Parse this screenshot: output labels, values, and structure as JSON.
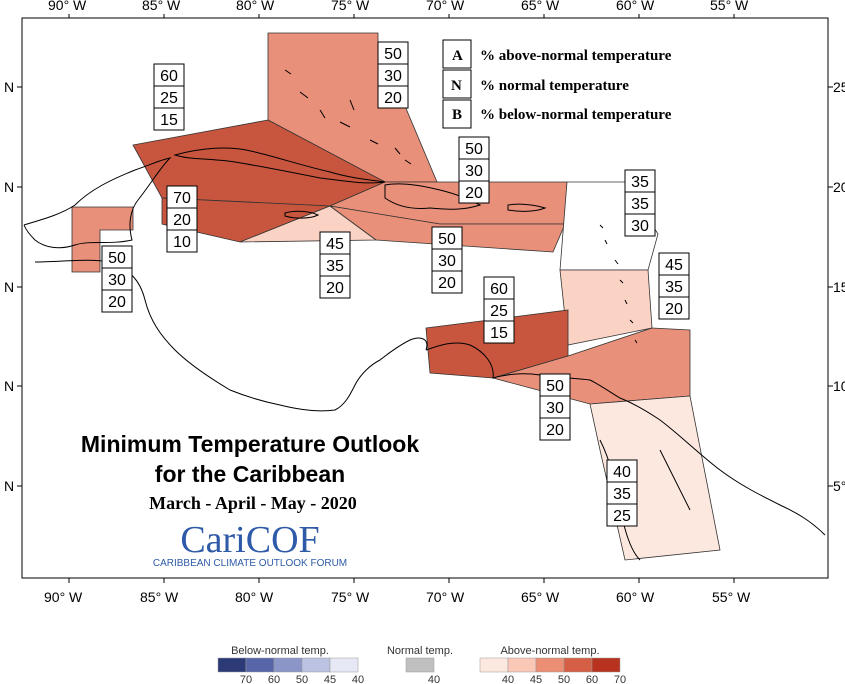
{
  "map": {
    "title_line1": "Minimum Temperature Outlook",
    "title_line2": "for the Caribbean",
    "period": "March - April - May - 2020",
    "logo": {
      "name": "CariCOF",
      "subtitle": "CARIBBEAN CLIMATE OUTLOOK FORUM",
      "color": "#2e5aa8"
    },
    "lon_ticks": [
      "90° W",
      "85° W",
      "80° W",
      "75° W",
      "70° W",
      "65° W",
      "60° W",
      "55° W"
    ],
    "lat_ticks_left": [
      "N",
      "N",
      "N",
      "N",
      "N"
    ],
    "lat_ticks_right": [
      "25",
      "20",
      "15",
      "10",
      "5°"
    ],
    "key": {
      "A": {
        "letter": "A",
        "desc": "% above-normal temperature"
      },
      "N": {
        "letter": "N",
        "desc": "% normal temperature"
      },
      "B": {
        "letter": "B",
        "desc": "% below-normal temperature"
      }
    },
    "regions": [
      {
        "name": "bahamas",
        "A": "50",
        "N": "30",
        "B": "20",
        "color": "#e8907a"
      },
      {
        "name": "cuba",
        "A": "60",
        "N": "25",
        "B": "15",
        "color": "#c8563e"
      },
      {
        "name": "jamaica-cayman",
        "A": "70",
        "N": "20",
        "B": "10",
        "color": "#c8563e"
      },
      {
        "name": "belize",
        "A": "50",
        "N": "30",
        "B": "20",
        "color": "#e8907a"
      },
      {
        "name": "jamaica-south",
        "A": "45",
        "N": "35",
        "B": "20",
        "color": "#fbd3c5"
      },
      {
        "name": "hispaniola-pr",
        "A": "50",
        "N": "30",
        "B": "20",
        "color": "#e8907a"
      },
      {
        "name": "hispaniola-south",
        "A": "50",
        "N": "30",
        "B": "20",
        "color": "#e8907a"
      },
      {
        "name": "leeward",
        "A": "35",
        "N": "35",
        "B": "30",
        "color": "#ffffff"
      },
      {
        "name": "windward",
        "A": "45",
        "N": "35",
        "B": "20",
        "color": "#fbd3c5"
      },
      {
        "name": "abc-islands",
        "A": "60",
        "N": "25",
        "B": "15",
        "color": "#c8563e"
      },
      {
        "name": "trinidad",
        "A": "50",
        "N": "30",
        "B": "20",
        "color": "#e8907a"
      },
      {
        "name": "guianas",
        "A": "40",
        "N": "35",
        "B": "25",
        "color": "#fde8e0"
      }
    ],
    "colorbar": {
      "below_label": "Below-normal temp.",
      "normal_label": "Normal temp.",
      "above_label": "Above-normal temp.",
      "below_values": [
        "70",
        "60",
        "50",
        "45",
        "40"
      ],
      "normal_values": [
        "40"
      ],
      "above_values": [
        "40",
        "45",
        "50",
        "60",
        "70"
      ],
      "below_colors": [
        "#2d3a78",
        "#5766a8",
        "#8b95c8",
        "#bcc3e2",
        "#e6e9f5"
      ],
      "normal_color": "#c0c0c0",
      "above_colors": [
        "#fde8e0",
        "#fbc8b8",
        "#eb8e74",
        "#d45f45",
        "#b7321f"
      ]
    }
  }
}
